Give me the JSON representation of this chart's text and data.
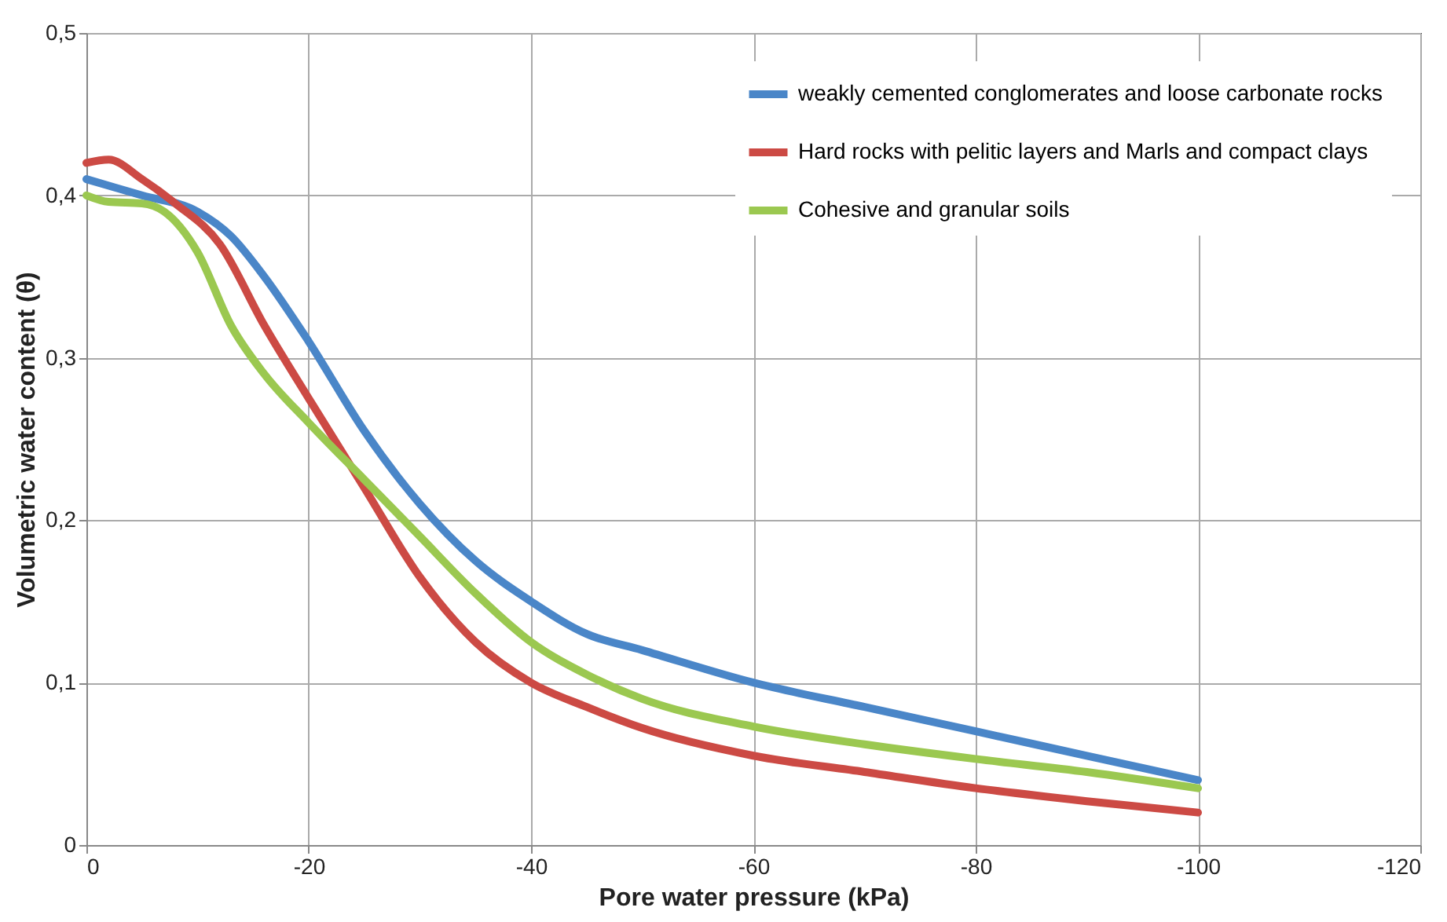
{
  "chart_data": {
    "type": "line",
    "xlabel": "Pore water pressure (kPa)",
    "ylabel": "Volumetric water content (θ)",
    "xlim": [
      0,
      -120
    ],
    "xticks": [
      0,
      -20,
      -40,
      -60,
      -80,
      -100,
      -120
    ],
    "ylim": [
      0,
      0.5
    ],
    "yticks": [
      {
        "value": 0,
        "label": "0"
      },
      {
        "value": 0.1,
        "label": "0,1"
      },
      {
        "value": 0.2,
        "label": "0,2"
      },
      {
        "value": 0.3,
        "label": "0,3"
      },
      {
        "value": 0.4,
        "label": "0,4"
      },
      {
        "value": 0.5,
        "label": "0,5"
      }
    ],
    "grid": true,
    "legend": "top right",
    "marker": "none",
    "line_style": "solid",
    "series": [
      {
        "name": "weakly cemented conglomerates and loose carbonate rocks",
        "color": "#4a86c8",
        "x": [
          0,
          -5,
          -10,
          -13,
          -16,
          -20,
          -25,
          -30,
          -35,
          -40,
          -45,
          -50,
          -60,
          -70,
          -80,
          -90,
          -100
        ],
        "values": [
          0.41,
          0.4,
          0.39,
          0.375,
          0.35,
          0.31,
          0.255,
          0.21,
          0.175,
          0.15,
          0.13,
          0.12,
          0.1,
          0.085,
          0.07,
          0.055,
          0.04
        ]
      },
      {
        "name": "Hard rocks with pelitic layers and Marls and compact clays",
        "color": "#cc4a44",
        "x": [
          0,
          -2,
          -5,
          -8,
          -12,
          -16,
          -20,
          -25,
          -30,
          -35,
          -40,
          -45,
          -50,
          -60,
          -70,
          -80,
          -90,
          -100
        ],
        "values": [
          0.42,
          0.422,
          0.41,
          0.395,
          0.37,
          0.32,
          0.275,
          0.22,
          0.165,
          0.125,
          0.1,
          0.085,
          0.072,
          0.055,
          0.045,
          0.035,
          0.027,
          0.02
        ]
      },
      {
        "name": "Cohesive and granular soils",
        "color": "#9bc850",
        "x": [
          0,
          -2,
          -5,
          -7,
          -10,
          -13,
          -16,
          -20,
          -25,
          -30,
          -35,
          -40,
          -45,
          -50,
          -60,
          -70,
          -80,
          -90,
          -100
        ],
        "values": [
          0.4,
          0.396,
          0.395,
          0.39,
          0.365,
          0.32,
          0.29,
          0.26,
          0.225,
          0.19,
          0.155,
          0.125,
          0.105,
          0.09,
          0.073,
          0.062,
          0.053,
          0.045,
          0.035
        ]
      }
    ]
  }
}
